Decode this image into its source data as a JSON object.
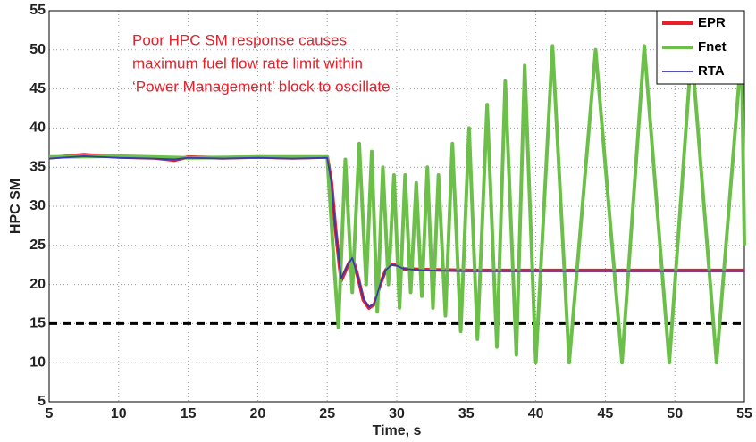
{
  "chart_data": {
    "type": "line",
    "xlabel": "Time, s",
    "ylabel": "HPC SM",
    "annotation": [
      "Poor HPC SM response causes",
      "maximum fuel flow rate limit within",
      "‘Power Management’ block to oscillate"
    ],
    "xlim": [
      5,
      55
    ],
    "xticks": [
      5,
      10,
      15,
      20,
      25,
      30,
      35,
      40,
      45,
      50,
      55
    ],
    "ylim": [
      5,
      55
    ],
    "yticks": [
      5,
      10,
      15,
      20,
      25,
      30,
      35,
      40,
      45,
      50,
      55
    ],
    "grid": true,
    "legend": "upper right",
    "hline": 15,
    "series": [
      {
        "name": "EPR",
        "color": "#e8202a",
        "x": [
          5,
          7.5,
          10,
          12.5,
          14,
          15,
          17.5,
          20,
          22.5,
          25,
          25.3,
          25.6,
          26,
          26.5,
          26.8,
          27.2,
          27.6,
          28,
          28.4,
          28.8,
          29.2,
          29.6,
          30,
          30.5,
          32,
          35,
          40,
          45,
          50,
          55
        ],
        "values": [
          36.2,
          36.6,
          36.3,
          36.2,
          35.9,
          36.3,
          36.2,
          36.3,
          36.2,
          36.3,
          33,
          27,
          20.5,
          22.5,
          23.5,
          21,
          18,
          17,
          17.5,
          20,
          21.8,
          22.6,
          22.5,
          22,
          21.9,
          21.8,
          21.8,
          21.8,
          21.8,
          21.8
        ]
      },
      {
        "name": "Fnet",
        "color": "#6cc04a",
        "x": [
          5,
          10,
          15,
          20,
          25,
          25.4,
          25.8,
          26.3,
          26.8,
          27.3,
          27.8,
          28.2,
          28.6,
          29,
          29.4,
          29.8,
          30.2,
          30.6,
          31,
          31.4,
          31.8,
          32.2,
          32.6,
          33,
          33.5,
          34,
          34.6,
          35.2,
          35.8,
          36.5,
          37.2,
          37.8,
          38.6,
          39.2,
          40,
          41.2,
          42.4,
          44.3,
          46.2,
          47.8,
          49.6,
          51.2,
          53,
          54.8,
          55
        ],
        "values": [
          36.3,
          36.4,
          36.2,
          36.3,
          36.3,
          25,
          14.5,
          36,
          19,
          38,
          20,
          37,
          16.5,
          35,
          20,
          34,
          17,
          34,
          19,
          33,
          18.5,
          35,
          17,
          34,
          16,
          38,
          14,
          40,
          13,
          43,
          12,
          46,
          11,
          48,
          10,
          50.5,
          10,
          50,
          10,
          50.5,
          10,
          50,
          10,
          50,
          25
        ]
      },
      {
        "name": "RTA",
        "color": "#3a3ab0",
        "x": [
          5,
          7.5,
          10,
          12.5,
          14,
          15,
          17.5,
          20,
          22.5,
          25,
          25.3,
          25.6,
          26,
          26.5,
          26.8,
          27.2,
          27.6,
          28,
          28.4,
          28.8,
          29.2,
          29.6,
          30,
          30.5,
          32,
          35,
          40,
          45,
          50,
          55
        ],
        "values": [
          36.1,
          36.4,
          36.2,
          36.1,
          36.0,
          36.2,
          36.1,
          36.2,
          36.1,
          36.2,
          33,
          27,
          20.8,
          22.6,
          23.4,
          21,
          18.2,
          17.1,
          17.6,
          20,
          21.8,
          22.5,
          22.4,
          22,
          21.8,
          21.7,
          21.7,
          21.7,
          21.7,
          21.7
        ]
      }
    ]
  }
}
